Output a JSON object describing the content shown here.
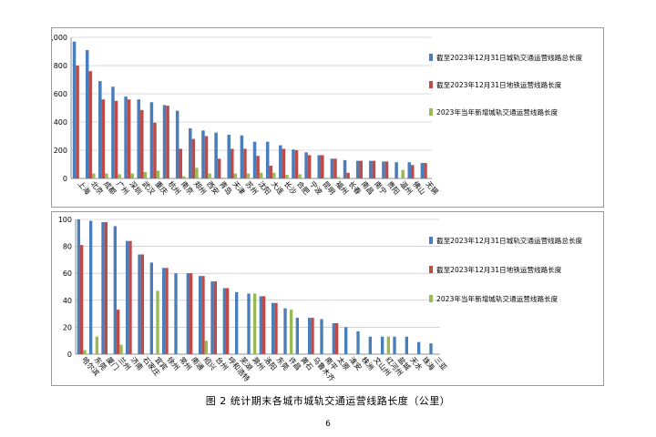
{
  "chart_data": [
    {
      "type": "bar",
      "ylim": [
        0,
        1000
      ],
      "yticks": [
        "0",
        "200",
        "400",
        "600",
        "800",
        "1,000"
      ],
      "categories": [
        "上海",
        "北京",
        "成都",
        "广州",
        "深圳",
        "武汉",
        "重庆",
        "杭州",
        "南京",
        "郑州",
        "西安",
        "青岛",
        "天津",
        "苏州",
        "沈阳",
        "大连",
        "长沙",
        "合肥",
        "宁波",
        "昆明",
        "福州",
        "长春",
        "南昌",
        "南宁",
        "贵阳",
        "温州",
        "佛山",
        "无锡"
      ],
      "series": [
        {
          "name": "截至2023年12月31日城轨交通运营线路总长度",
          "color": "#4a7ebb",
          "values": [
            970,
            910,
            690,
            650,
            580,
            560,
            540,
            520,
            480,
            355,
            340,
            325,
            310,
            305,
            260,
            260,
            235,
            205,
            185,
            165,
            140,
            130,
            125,
            125,
            120,
            115,
            115,
            110
          ]
        },
        {
          "name": "截至2023年12月31日地铁运营线路长度",
          "color": "#be4b48",
          "values": [
            800,
            760,
            560,
            550,
            560,
            485,
            395,
            515,
            210,
            280,
            300,
            140,
            210,
            210,
            160,
            90,
            210,
            200,
            165,
            165,
            140,
            40,
            125,
            125,
            120,
            0,
            95,
            110
          ]
        },
        {
          "name": "2023年当年新增城轨交通运营线路长度",
          "color": "#98b954",
          "values": [
            0,
            35,
            35,
            30,
            35,
            45,
            55,
            0,
            15,
            75,
            35,
            5,
            35,
            35,
            40,
            40,
            25,
            30,
            0,
            0,
            10,
            0,
            0,
            0,
            0,
            60,
            0,
            0
          ]
        }
      ],
      "grid": true,
      "legend": "right"
    },
    {
      "type": "bar",
      "ylim": [
        0,
        100
      ],
      "yticks": [
        "0",
        "20",
        "40",
        "60",
        "80",
        "100"
      ],
      "categories": [
        "哈尔滨",
        "东莞",
        "厦门",
        "兰州",
        "济南",
        "石家庄",
        "宜宾",
        "徐州",
        "常州",
        "南通",
        "绍兴",
        "台州",
        "呼和浩特",
        "芜湖",
        "滁州",
        "洛阳",
        "东莞",
        "许昌",
        "黄石",
        "乌鲁木齐",
        "南平",
        "太原",
        "淮安",
        "株洲",
        "文山州",
        "红河州",
        "盐城",
        "天水",
        "珠海",
        "三亚"
      ],
      "series": [
        {
          "name": "截至2023年12月31日城轨交通运营线路总长度",
          "color": "#4a7ebb",
          "values": [
            100,
            99,
            98,
            95,
            84,
            74,
            68,
            64,
            60,
            60,
            58,
            54,
            49,
            46,
            45,
            43,
            38,
            34,
            27,
            27,
            26,
            23,
            20,
            17,
            13,
            13,
            13,
            13,
            9,
            8
          ]
        },
        {
          "name": "截至2023年12月31日地铁运营线路长度",
          "color": "#be4b48",
          "values": [
            81,
            0,
            98,
            33,
            84,
            74,
            0,
            64,
            0,
            60,
            58,
            54,
            49,
            0,
            0,
            43,
            38,
            0,
            0,
            27,
            0,
            23,
            0,
            0,
            0,
            0,
            0,
            0,
            0,
            0
          ]
        },
        {
          "name": "2023年当年新增城轨交通运营线路长度",
          "color": "#98b954",
          "values": [
            3,
            13,
            0,
            7,
            0,
            0,
            47,
            0,
            0,
            0,
            10,
            0,
            0,
            0,
            45,
            0,
            0,
            33,
            0,
            0,
            0,
            0,
            0,
            0,
            0,
            13,
            0,
            0,
            0,
            0
          ]
        }
      ],
      "grid": true,
      "legend": "right"
    }
  ],
  "caption": "图 2  统计期末各城市城轨交通运营线路长度（公里）",
  "page_number": "6"
}
